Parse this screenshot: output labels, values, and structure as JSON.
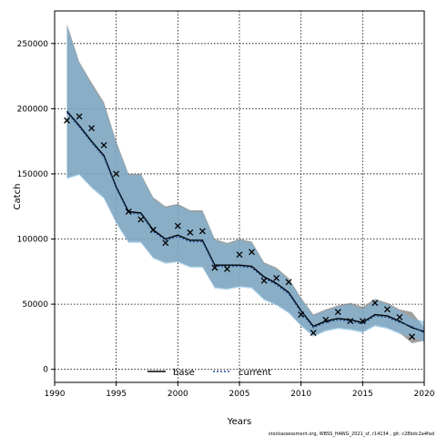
{
  "chart_data": {
    "type": "line",
    "xlabel": "Years",
    "ylabel": "Catch",
    "xlim": [
      1990,
      2020
    ],
    "ylim": [
      -10000,
      275000
    ],
    "xticks": [
      1990,
      1995,
      2000,
      2005,
      2010,
      2015,
      2020
    ],
    "yticks": [
      0,
      50000,
      100000,
      150000,
      200000,
      250000
    ],
    "grid": true,
    "legend_position": "bottom-center",
    "footnote": "stockassessment.org, WBSS_HAWG_2021_sf, r14134 , git: c28bdc2a4fad",
    "x": [
      1991,
      1992,
      1993,
      1994,
      1995,
      1996,
      1997,
      1998,
      1999,
      2000,
      2001,
      2002,
      2003,
      2004,
      2005,
      2006,
      2007,
      2008,
      2009,
      2010,
      2011,
      2012,
      2013,
      2014,
      2015,
      2016,
      2017,
      2018,
      2019,
      2020
    ],
    "observed": {
      "marker": "x",
      "color": "#000000",
      "values": [
        191000,
        194000,
        185000,
        172000,
        150000,
        121000,
        115000,
        107000,
        97000,
        110000,
        105000,
        106000,
        78000,
        77000,
        88000,
        90000,
        68000,
        70000,
        67000,
        42000,
        28000,
        38000,
        44000,
        37000,
        37000,
        51000,
        46000,
        40000,
        25000,
        null
      ]
    },
    "series": [
      {
        "name": "base",
        "color": "#000000",
        "band_color": "#808080",
        "line_style": "solid",
        "values": [
          198000,
          187000,
          175000,
          164000,
          140000,
          121000,
          120000,
          107000,
          100000,
          103000,
          99000,
          99000,
          80000,
          80000,
          80000,
          79000,
          71000,
          66000,
          59000,
          45000,
          33000,
          37000,
          39000,
          38000,
          36000,
          42000,
          41000,
          37000,
          32000,
          29000
        ],
        "upper": [
          265000,
          236000,
          220000,
          205000,
          175000,
          150000,
          150000,
          132000,
          125000,
          127000,
          122000,
          122000,
          100000,
          97000,
          100000,
          98000,
          82000,
          78000,
          70000,
          55000,
          42000,
          46000,
          49000,
          51000,
          48000,
          54000,
          51000,
          46000,
          44000,
          32000
        ],
        "lower": [
          147000,
          150000,
          140000,
          132000,
          113000,
          98000,
          98000,
          86000,
          82000,
          83000,
          79000,
          79000,
          63000,
          62000,
          64000,
          63000,
          54000,
          50000,
          44000,
          34000,
          26000,
          30000,
          32000,
          31000,
          29000,
          34000,
          32000,
          28000,
          20000,
          22000
        ]
      },
      {
        "name": "current",
        "color": "#1f4e9a",
        "band_color": "#7ab8e0",
        "line_style": "dashed",
        "values": [
          197000,
          186000,
          174000,
          163000,
          139000,
          120000,
          119000,
          106000,
          99000,
          102000,
          98000,
          98000,
          79000,
          79000,
          79000,
          78000,
          70000,
          65000,
          58000,
          44000,
          32000,
          36000,
          38000,
          37000,
          35000,
          41000,
          40000,
          36000,
          33000,
          28000
        ],
        "upper": [
          263000,
          235000,
          218000,
          203000,
          173000,
          149000,
          149000,
          131000,
          124000,
          126000,
          121000,
          121000,
          99000,
          96000,
          99000,
          97000,
          81000,
          77000,
          69000,
          54000,
          41000,
          45000,
          48000,
          50000,
          46000,
          53000,
          50000,
          45000,
          39000,
          37000
        ],
        "lower": [
          146000,
          149000,
          139000,
          131000,
          112000,
          97000,
          97000,
          85000,
          81000,
          82000,
          78000,
          78000,
          62000,
          61000,
          63000,
          62000,
          53000,
          49000,
          43000,
          33000,
          25000,
          29000,
          31000,
          30000,
          28000,
          33000,
          31000,
          27000,
          25000,
          21000
        ]
      }
    ]
  }
}
